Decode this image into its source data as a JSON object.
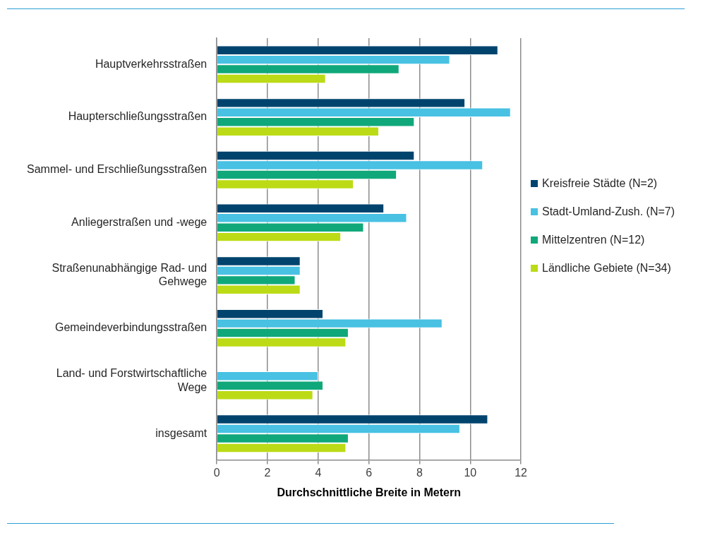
{
  "chart_data": {
    "type": "bar",
    "orientation": "horizontal",
    "xlabel": "Durchschnittliche Breite in Metern",
    "categories": [
      "Hauptverkehrsstraßen",
      "Haupterschließungsstraßen",
      "Sammel- und Erschließungsstraßen",
      "Anliegerstraßen und -wege",
      "Straßenunabhängige Rad- und Gehwege",
      "Gemeindeverbindungsstraßen",
      "Land- und Forstwirtschaftliche Wege",
      "insgesamt"
    ],
    "series": [
      {
        "name": "Kreisfreie Städte (N=2)",
        "color": "#00446e",
        "values": [
          11.1,
          9.8,
          7.8,
          6.6,
          3.3,
          4.2,
          null,
          10.7
        ]
      },
      {
        "name": "Stadt-Umland-Zush. (N=7)",
        "color": "#48c1e3",
        "values": [
          9.2,
          11.6,
          10.5,
          7.5,
          3.3,
          8.9,
          4.0,
          9.6
        ]
      },
      {
        "name": "Mittelzentren (N=12)",
        "color": "#10a87a",
        "values": [
          7.2,
          7.8,
          7.1,
          5.8,
          3.1,
          5.2,
          4.2,
          5.2
        ]
      },
      {
        "name": "Ländliche Gebiete (N=34)",
        "color": "#bcdb16",
        "values": [
          4.3,
          6.4,
          5.4,
          4.9,
          3.3,
          5.1,
          3.8,
          5.1
        ]
      }
    ],
    "xlim": [
      0,
      12
    ],
    "xticks": [
      0,
      2,
      4,
      6,
      8,
      10,
      12
    ],
    "grid": "x",
    "legend": "right"
  }
}
